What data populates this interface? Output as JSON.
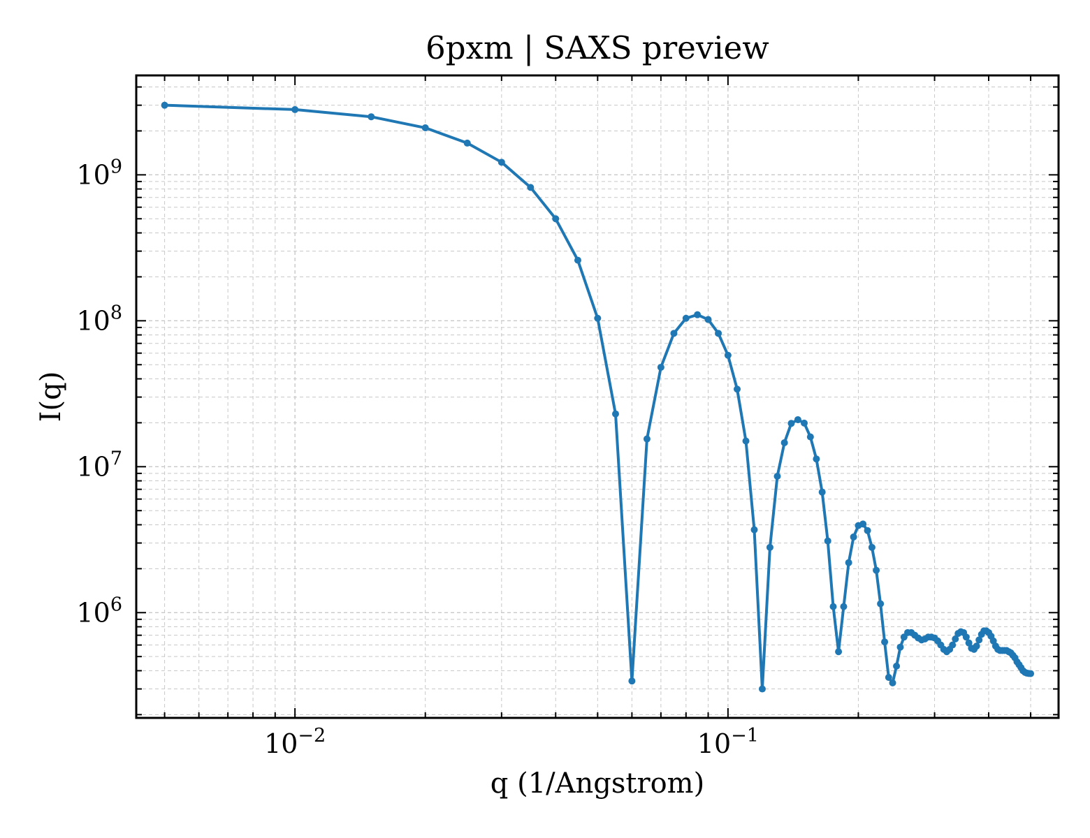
{
  "chart_data": {
    "type": "line",
    "title": "6pxm | SAXS preview",
    "xlabel": "q (1/Angstrom)",
    "ylabel": "I(q)",
    "xscale": "log",
    "yscale": "log",
    "xlim": [
      0.0043,
      0.58
    ],
    "ylim": [
      190000,
      4800000000
    ],
    "grid": "on (major and minor, dashed)",
    "x_major_ticks": [
      {
        "value": 0.01,
        "base": "10",
        "exp": "−2"
      },
      {
        "value": 0.1,
        "base": "10",
        "exp": "−1"
      }
    ],
    "y_major_ticks": [
      {
        "value": 1000000,
        "base": "10",
        "exp": "6"
      },
      {
        "value": 10000000,
        "base": "10",
        "exp": "7"
      },
      {
        "value": 100000000,
        "base": "10",
        "exp": "8"
      },
      {
        "value": 1000000000,
        "base": "10",
        "exp": "9"
      }
    ],
    "colors": {
      "line": "#1f77b4",
      "grid": "#c8c8c8",
      "axes": "#000000"
    },
    "series": [
      {
        "x": [
          0.005,
          0.01,
          0.015,
          0.02,
          0.025,
          0.03,
          0.035,
          0.04,
          0.045,
          0.05,
          0.055,
          0.06,
          0.065,
          0.07,
          0.075,
          0.08,
          0.085,
          0.09,
          0.095,
          0.1,
          0.105,
          0.11,
          0.115,
          0.12,
          0.125,
          0.13,
          0.135,
          0.14,
          0.145,
          0.15,
          0.155,
          0.16,
          0.165,
          0.17,
          0.175,
          0.18,
          0.185,
          0.19,
          0.195,
          0.2,
          0.205,
          0.21,
          0.215,
          0.22,
          0.225,
          0.23,
          0.235,
          0.24,
          0.245,
          0.25,
          0.255,
          0.26,
          0.265,
          0.27,
          0.275,
          0.28,
          0.285,
          0.29,
          0.295,
          0.3,
          0.305,
          0.31,
          0.315,
          0.32,
          0.325,
          0.33,
          0.335,
          0.34,
          0.345,
          0.35,
          0.355,
          0.36,
          0.365,
          0.37,
          0.375,
          0.38,
          0.385,
          0.39,
          0.395,
          0.4,
          0.405,
          0.41,
          0.415,
          0.42,
          0.425,
          0.43,
          0.435,
          0.44,
          0.445,
          0.45,
          0.455,
          0.46,
          0.465,
          0.47,
          0.475,
          0.48,
          0.485,
          0.49,
          0.495,
          0.5
        ],
        "y": [
          3000000000,
          2800000000,
          2500000000,
          2100000000,
          1650000000,
          1220000000,
          820000000,
          500000000,
          260000000,
          104000000,
          23000000,
          340000,
          15500000,
          48000000,
          82000000,
          104000000,
          110000000,
          102000000,
          82000000,
          58000000,
          34000000,
          15000000,
          3700000,
          300000,
          2800000,
          8600000,
          14600000,
          19800000,
          21000000,
          19900000,
          16000000,
          11300000,
          6700000,
          3100000,
          1100000,
          540000,
          1100000,
          2200000,
          3300000,
          3950000,
          4050000,
          3650000,
          2800000,
          1950000,
          1150000,
          630000,
          360000,
          330000,
          430000,
          580000,
          680000,
          730000,
          730000,
          700000,
          670000,
          650000,
          660000,
          680000,
          680000,
          670000,
          640000,
          600000,
          560000,
          540000,
          560000,
          600000,
          660000,
          720000,
          740000,
          730000,
          680000,
          620000,
          570000,
          560000,
          590000,
          650000,
          710000,
          750000,
          750000,
          730000,
          690000,
          640000,
          590000,
          560000,
          550000,
          550000,
          550000,
          550000,
          540000,
          530000,
          510000,
          490000,
          460000,
          440000,
          420000,
          400000,
          390000,
          385000,
          383000,
          382000
        ]
      }
    ]
  }
}
